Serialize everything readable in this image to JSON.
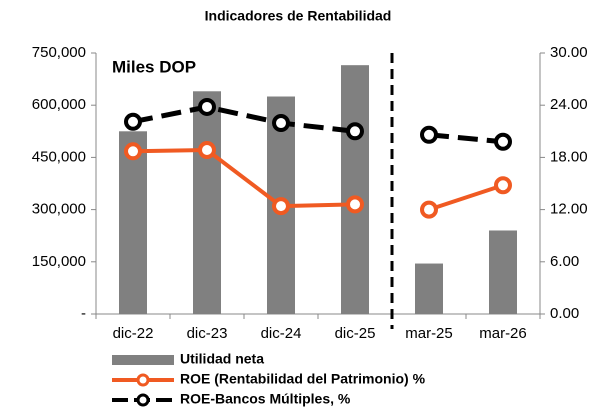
{
  "chart_data": {
    "type": "bar_line",
    "title": "Indicadores de Rentabilidad",
    "annotation": "Miles DOP",
    "categories": [
      "dic-22",
      "dic-23",
      "dic-24",
      "dic-25",
      "mar-25",
      "mar-26"
    ],
    "divider_after_index": 3,
    "series": [
      {
        "name": "Utilidad neta",
        "type": "bar",
        "color": "#808080",
        "values": [
          525000,
          640000,
          625000,
          715000,
          145000,
          240000
        ]
      },
      {
        "name": "ROE (Rentabilidad del Patrimonio) %",
        "type": "line",
        "axis": "y2",
        "color": "#f05a22",
        "dashed": false,
        "values": [
          18.7,
          18.85,
          12.4,
          12.6,
          12.0,
          14.8
        ]
      },
      {
        "name": "ROE-Bancos Múltiples, %",
        "type": "line",
        "axis": "y2",
        "color": "#000000",
        "dashed": true,
        "values": [
          22.1,
          23.8,
          21.95,
          21.0,
          20.6,
          19.8
        ]
      }
    ],
    "ylim": [
      0,
      750000
    ],
    "yticks": [
      {
        "value": 0,
        "label": "-"
      },
      {
        "value": 150000,
        "label": "150,000"
      },
      {
        "value": 300000,
        "label": "300,000"
      },
      {
        "value": 450000,
        "label": "450,000"
      },
      {
        "value": 600000,
        "label": "600,000"
      },
      {
        "value": 750000,
        "label": "750,000"
      }
    ],
    "y2lim": [
      0,
      30
    ],
    "y2ticks": [
      {
        "value": 0,
        "label": "0.00"
      },
      {
        "value": 6,
        "label": "6.00"
      },
      {
        "value": 12,
        "label": "12.00"
      },
      {
        "value": 18,
        "label": "18.00"
      },
      {
        "value": 24,
        "label": "24.00"
      },
      {
        "value": 30,
        "label": "30.00"
      }
    ]
  }
}
